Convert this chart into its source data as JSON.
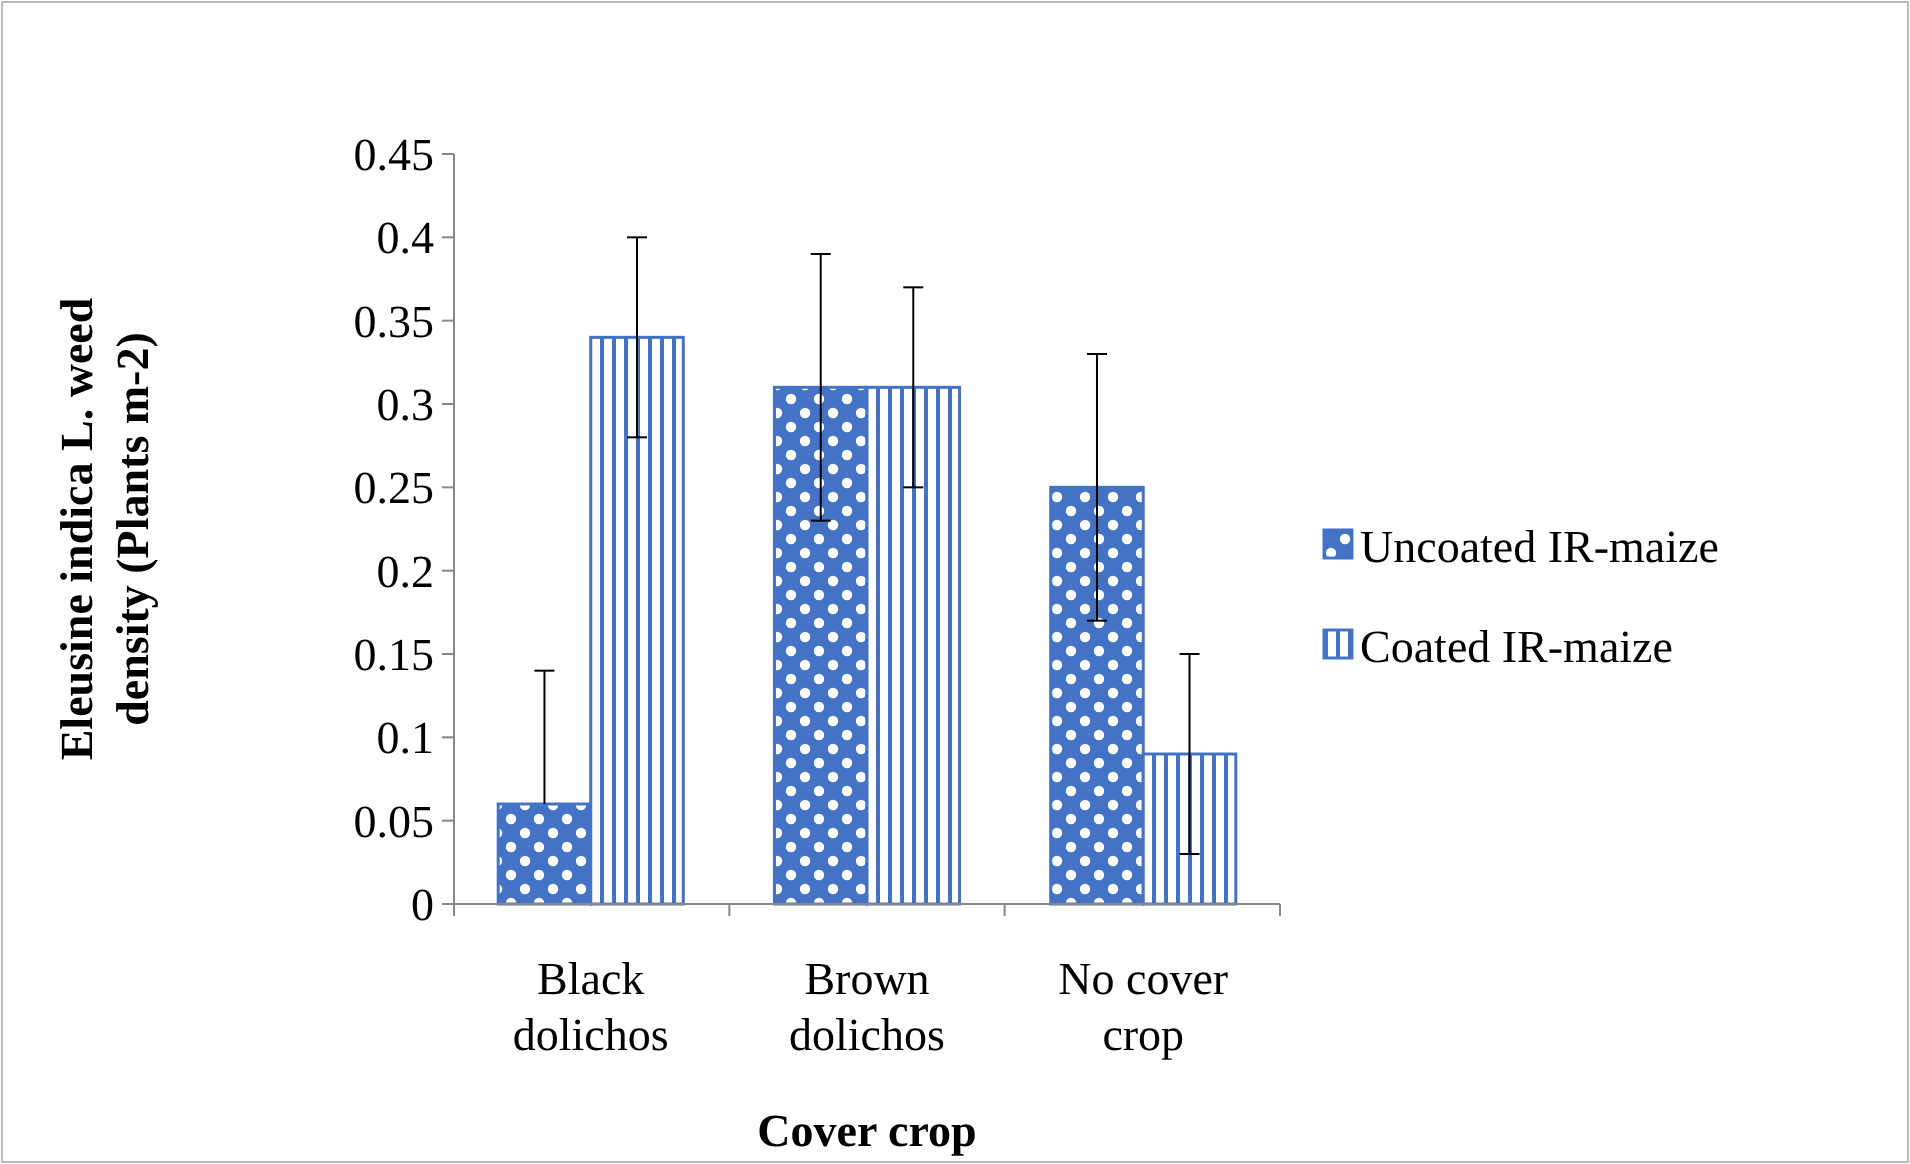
{
  "chart_data": {
    "type": "bar",
    "xlabel": "Cover crop",
    "ylabel": "Eleusine indica L. weed density (Plants m-2)",
    "categories": [
      "Black dolichos",
      "Brown dolichos",
      "No cover crop"
    ],
    "series": [
      {
        "name": "Uncoated IR-maize",
        "color": "#4472c4",
        "values": [
          0.06,
          0.31,
          0.25
        ],
        "errors": [
          [
            0.06,
            0.14
          ],
          [
            0.23,
            0.39
          ],
          [
            0.17,
            0.33
          ]
        ]
      },
      {
        "name": "Coated IR-maize",
        "color": "#4472c4",
        "values": [
          0.34,
          0.31,
          0.09
        ],
        "errors": [
          [
            0.28,
            0.4
          ],
          [
            0.25,
            0.37
          ],
          [
            0.03,
            0.15
          ]
        ]
      }
    ],
    "ylim": [
      0,
      0.45
    ],
    "yticks": [
      0,
      0.05,
      0.1,
      0.15,
      0.2,
      0.25,
      0.3,
      0.35,
      0.4,
      0.45
    ],
    "grid": false,
    "legend": "right"
  }
}
